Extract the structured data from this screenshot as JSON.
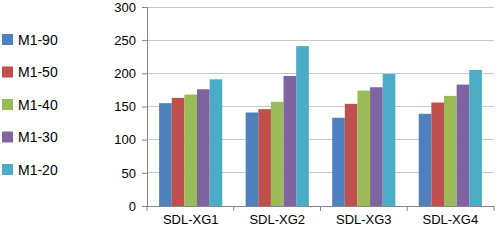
{
  "chart_data": {
    "type": "bar",
    "categories": [
      "SDL-XG1",
      "SDL-XG2",
      "SDL-XG3",
      "SDL-XG4"
    ],
    "series": [
      {
        "name": "M1-90",
        "color": "#4f81bd",
        "values": [
          155,
          141,
          133,
          139
        ]
      },
      {
        "name": "M1-50",
        "color": "#c0504d",
        "values": [
          163,
          146,
          154,
          156
        ]
      },
      {
        "name": "M1-40",
        "color": "#9bbb59",
        "values": [
          168,
          157,
          174,
          166
        ]
      },
      {
        "name": "M1-30",
        "color": "#8064a2",
        "values": [
          176,
          196,
          179,
          183
        ]
      },
      {
        "name": "M1-20",
        "color": "#4bacc6",
        "values": [
          191,
          241,
          199,
          205
        ]
      }
    ],
    "ylim": [
      0,
      300
    ],
    "yticks": [
      0,
      50,
      100,
      150,
      200,
      250,
      300
    ],
    "grid": true,
    "legend": "left"
  }
}
